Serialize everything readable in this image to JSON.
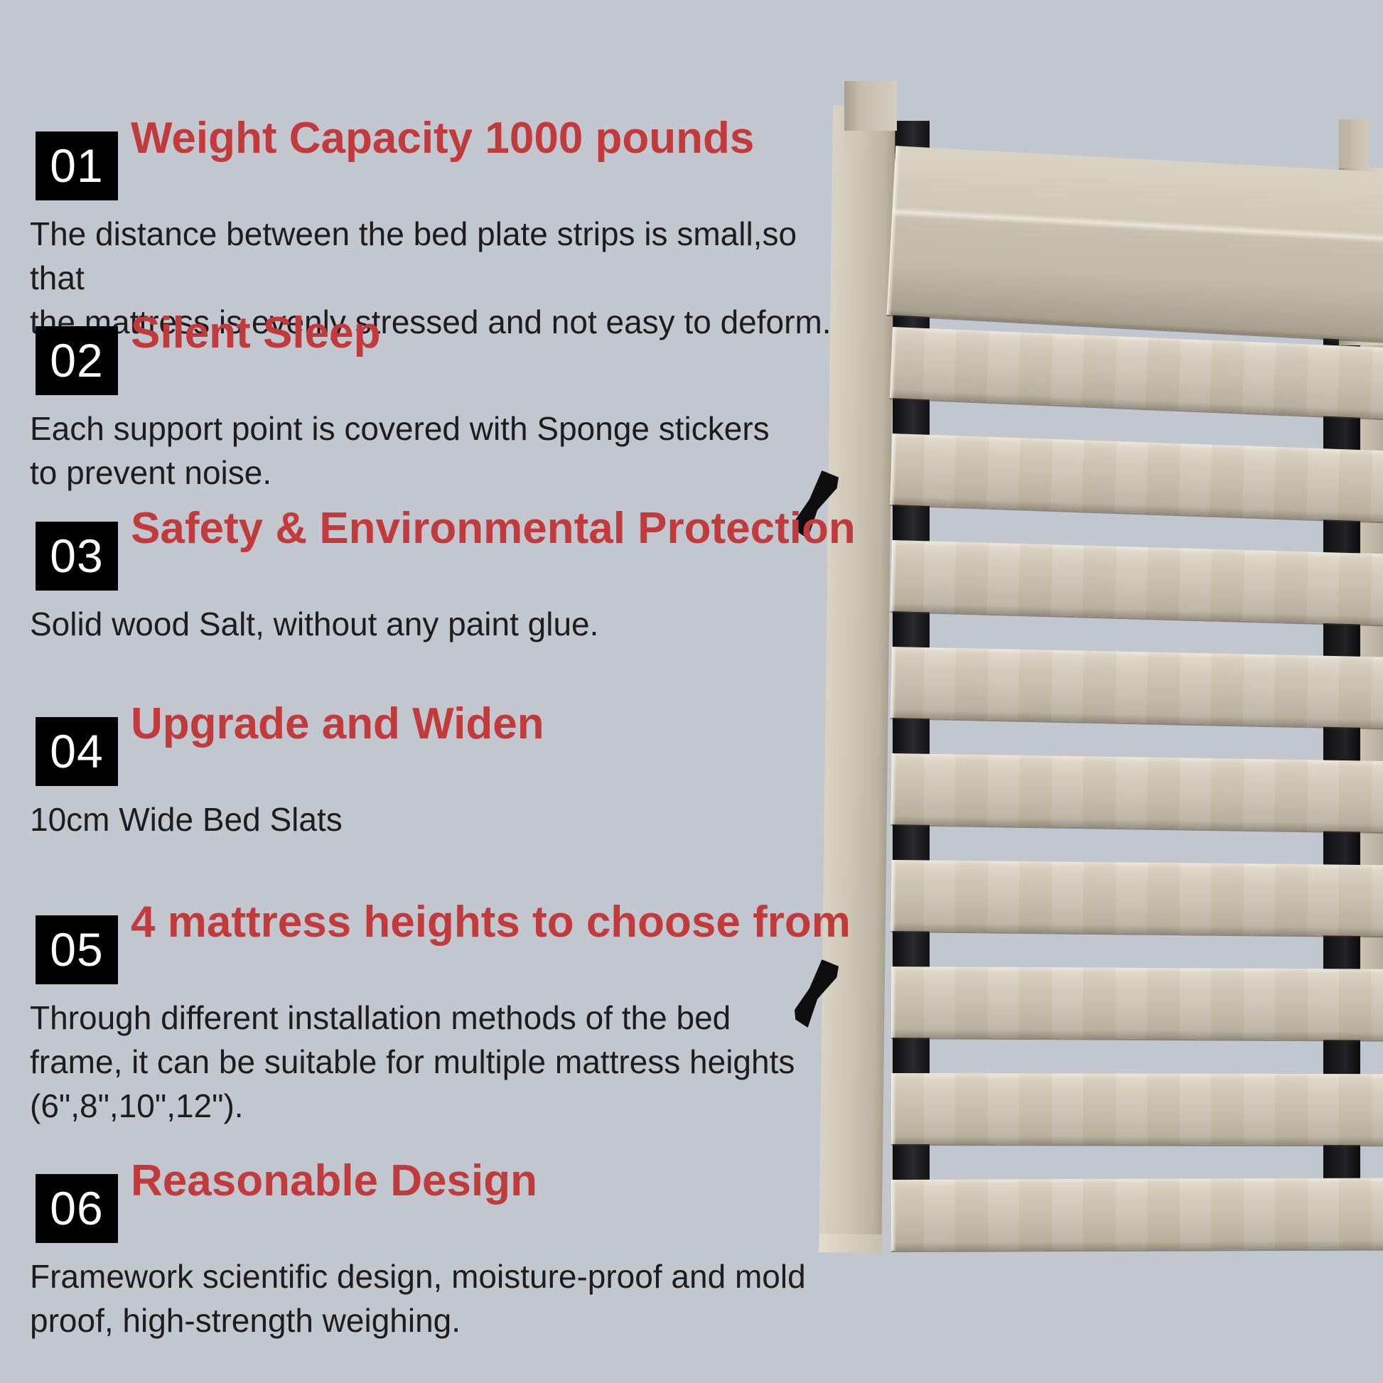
{
  "page": {
    "background_color": "#c2c6ce",
    "accent_red": "#c13a3c",
    "number_box_color": "#000000"
  },
  "sections": [
    {
      "num": "01",
      "title": "Weight Capacity 1000 pounds",
      "body": "The distance between the bed plate strips is small,so that\nthe mattress is evenly stressed and not easy to deform."
    },
    {
      "num": "02",
      "title": "Silent Sleep",
      "body": "Each support point is covered with Sponge stickers\nto prevent noise."
    },
    {
      "num": "03",
      "title": "Safety & Environmental Protection",
      "body": "Solid wood Salt, without any paint glue."
    },
    {
      "num": "04",
      "title": "Upgrade and Widen",
      "body": "10cm Wide Bed Slats"
    },
    {
      "num": "05",
      "title": "4 mattress heights to choose from",
      "body": "Through different installation methods of the bed\nframe, it can be suitable for multiple mattress heights\n(6\",8\",10\",12\")."
    },
    {
      "num": "06",
      "title": "Reasonable Design",
      "body": "Framework scientific design, moisture-proof and mold\nproof, high-strength weighing."
    }
  ],
  "illustration": {
    "alt": "Wooden bed slat frame with black metal side rails, two black mounting hooks and wide light-wood slats"
  }
}
